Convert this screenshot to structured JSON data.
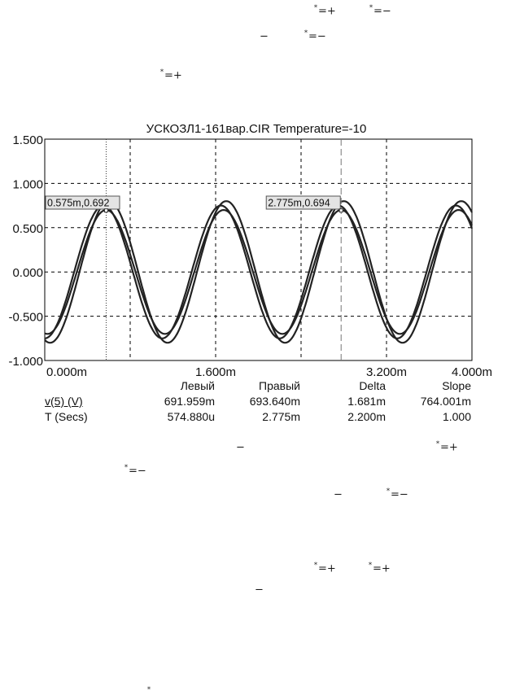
{
  "fragments": [
    {
      "id": "f1",
      "star": "*",
      "text": "=+"
    },
    {
      "id": "f2",
      "star": "*",
      "text": "=−"
    },
    {
      "id": "f3",
      "star": "",
      "text": "−"
    },
    {
      "id": "f4",
      "star": "*",
      "text": "=−"
    },
    {
      "id": "f5",
      "star": "*",
      "text": "=+"
    },
    {
      "id": "f6",
      "star": "",
      "text": "−"
    },
    {
      "id": "f7",
      "star": "*",
      "text": "=+"
    },
    {
      "id": "f8",
      "star": "*",
      "text": "=−"
    },
    {
      "id": "f9",
      "star": "",
      "text": "−"
    },
    {
      "id": "f10",
      "star": "*",
      "text": "=−"
    },
    {
      "id": "f11",
      "star": "*",
      "text": "=+"
    },
    {
      "id": "f12",
      "star": "*",
      "text": "=+"
    },
    {
      "id": "f13",
      "star": "",
      "text": "−"
    },
    {
      "id": "f14",
      "star": "*",
      "text": ""
    }
  ],
  "colors": {
    "trace": "#222222",
    "grid": "#000000",
    "cursor_box": "#e4e4e4"
  },
  "chart_data": {
    "type": "line",
    "title": "УСКОЗЛ1-161вар.CIR Temperature=-10",
    "xlabel": "",
    "ylabel": "",
    "xlim": [
      0,
      4.0
    ],
    "ylim": [
      -1.0,
      1.5
    ],
    "x_unit": "ms",
    "x_tick_values": [
      0,
      0.8,
      1.6,
      2.4,
      3.2,
      4.0
    ],
    "x_tick_labels": [
      "0.000m",
      "",
      "1.600m",
      "",
      "3.200m",
      "4.000m"
    ],
    "y_tick_values": [
      1.5,
      1.0,
      0.5,
      0.0,
      -0.5,
      -1.0
    ],
    "y_tick_labels": [
      "1.500",
      "1.000",
      "0.500",
      "0.000",
      "-0.500",
      "-1.000"
    ],
    "grid": true,
    "series": [
      {
        "amplitude": 0.7,
        "period_ms": 1.1,
        "start_ms": 0.0,
        "phase_ms": 0.575
      },
      {
        "amplitude": 0.8,
        "period_ms": 1.1,
        "start_ms": 0.0,
        "phase_ms": 0.6
      },
      {
        "amplitude": 0.75,
        "period_ms": 1.1,
        "start_ms": 0.0,
        "phase_ms": 0.55
      }
    ],
    "cursors": [
      {
        "x": 0.575,
        "label": "0.575m,0.692",
        "style": "dotted"
      },
      {
        "x": 2.775,
        "label": "2.775m,0.694",
        "style": "dashed"
      }
    ]
  },
  "measurements": {
    "headers": [
      "Левый",
      "Правый",
      "Delta",
      "Slope"
    ],
    "rows": [
      {
        "name": "v(5) (V)",
        "values": [
          "691.959m",
          "693.640m",
          "1.681m",
          "764.001m"
        ]
      },
      {
        "name": "T (Secs)",
        "values": [
          "574.880u",
          "2.775m",
          "2.200m",
          "1.000"
        ]
      }
    ]
  }
}
